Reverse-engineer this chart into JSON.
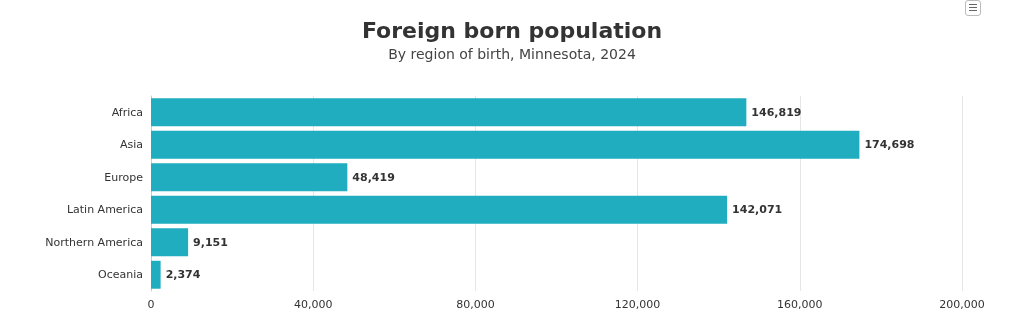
{
  "chart_data": {
    "type": "bar",
    "orientation": "horizontal",
    "title": "Foreign born population",
    "subtitle": "By region of birth, Minnesota, 2024",
    "categories": [
      "Africa",
      "Asia",
      "Europe",
      "Latin America",
      "Northern America",
      "Oceania"
    ],
    "values": [
      146819,
      174698,
      48419,
      142071,
      9151,
      2374
    ],
    "color": "#20adbf",
    "value_labels": [
      "146,819",
      "174,698",
      "48,419",
      "142,071",
      "9,151",
      "2,374"
    ],
    "xlim": [
      0,
      200000
    ],
    "xticks": [
      0,
      {
        "value": 40000,
        "label": "40,000"
      },
      {
        "value": 80000,
        "label": "80,000"
      },
      {
        "value": 120000,
        "label": "120,000"
      },
      {
        "value": 160000,
        "label": "160,000"
      },
      {
        "value": 200000,
        "label": "200,000"
      }
    ],
    "grid": "x"
  }
}
